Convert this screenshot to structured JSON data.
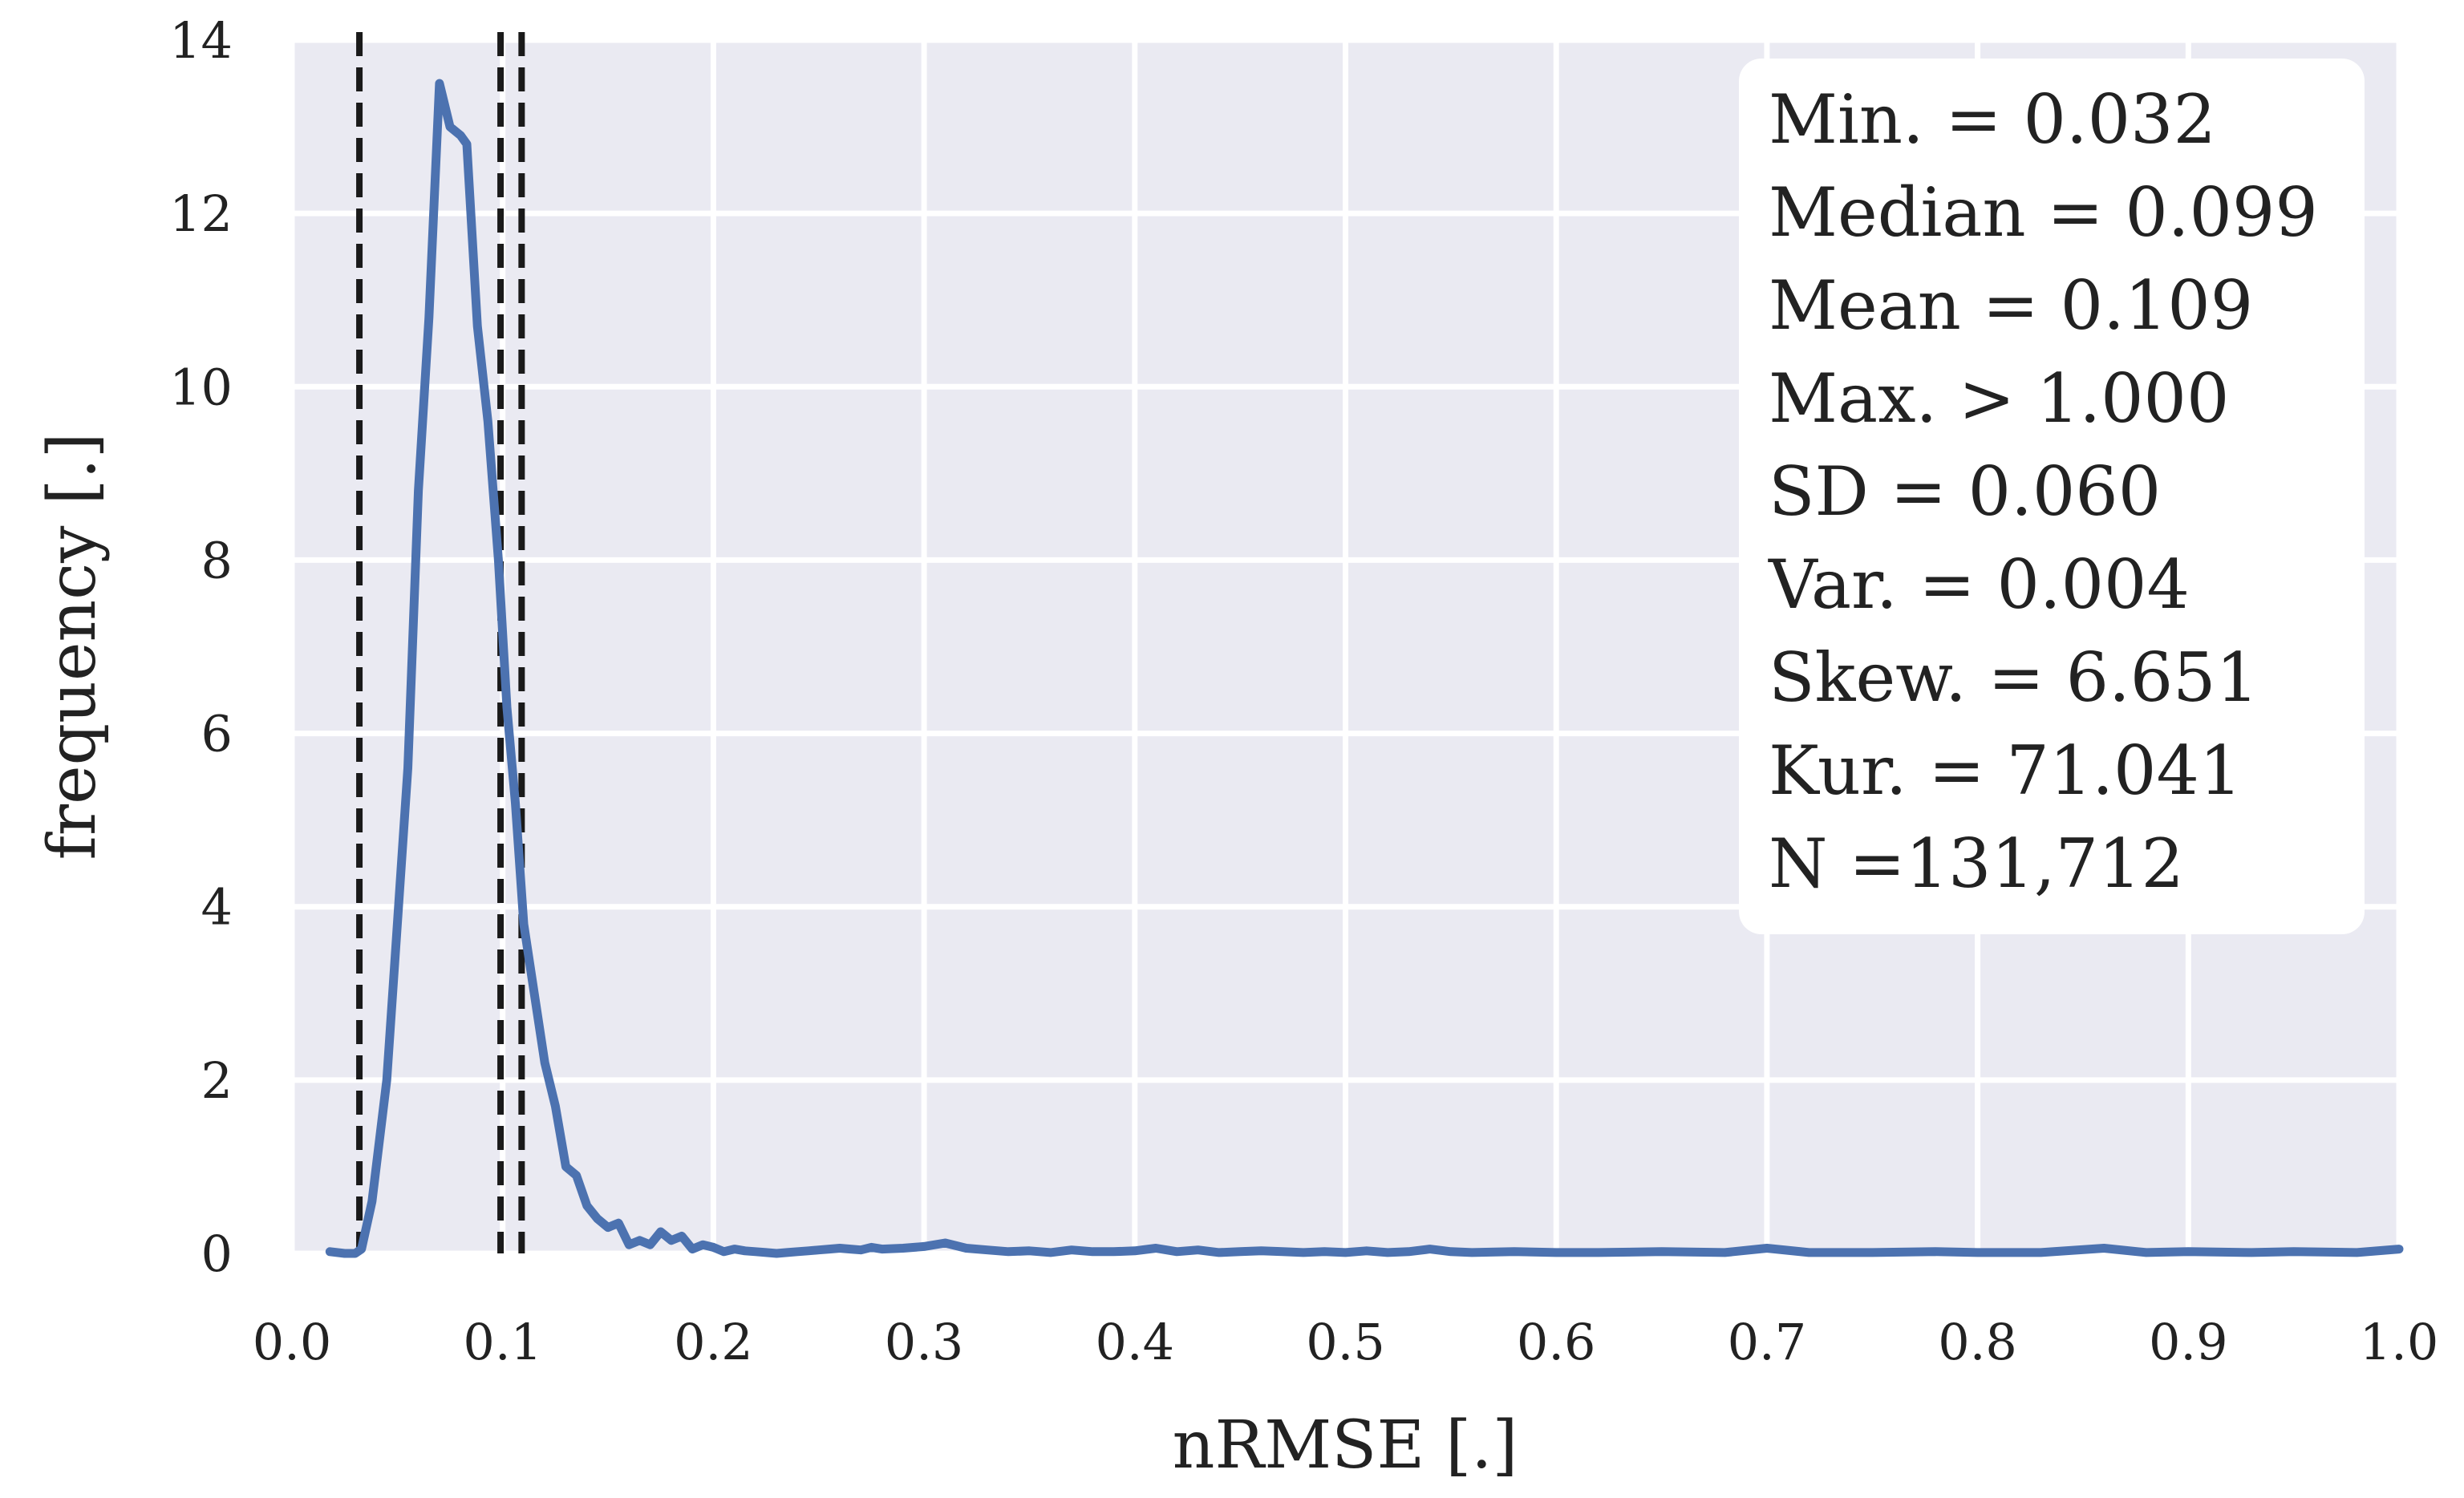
{
  "chart_data": {
    "type": "line",
    "title": "",
    "xlabel": "nRMSE [.]",
    "ylabel": "frequency [.]",
    "xlim": [
      0.0,
      1.0
    ],
    "ylim": [
      0,
      14
    ],
    "xticks": [
      "0.0",
      "0.1",
      "0.2",
      "0.3",
      "0.4",
      "0.5",
      "0.6",
      "0.7",
      "0.8",
      "0.9",
      "1.0"
    ],
    "yticks": [
      "0",
      "2",
      "4",
      "6",
      "8",
      "10",
      "12",
      "14"
    ],
    "grid": true,
    "colors": {
      "background": "#eaeaf2",
      "grid": "#ffffff",
      "line": "#4c72b0",
      "vlines": "#1a1a1a"
    },
    "series": [
      {
        "x": [
          0.018,
          0.025,
          0.03,
          0.033,
          0.038,
          0.045,
          0.05,
          0.055,
          0.06,
          0.065,
          0.07,
          0.075,
          0.08,
          0.083,
          0.088,
          0.093,
          0.098,
          0.102,
          0.106,
          0.11,
          0.115,
          0.12,
          0.125,
          0.13,
          0.135,
          0.14,
          0.145,
          0.15,
          0.155,
          0.16,
          0.165,
          0.17,
          0.175,
          0.18,
          0.185,
          0.19,
          0.195,
          0.2,
          0.205,
          0.21,
          0.215,
          0.22,
          0.225,
          0.23,
          0.235,
          0.24,
          0.245,
          0.25,
          0.255,
          0.26,
          0.265,
          0.27,
          0.275,
          0.28,
          0.29,
          0.3,
          0.31,
          0.32,
          0.33,
          0.34,
          0.35,
          0.36,
          0.37,
          0.38,
          0.39,
          0.4,
          0.41,
          0.42,
          0.43,
          0.44,
          0.45,
          0.46,
          0.47,
          0.48,
          0.49,
          0.5,
          0.51,
          0.52,
          0.53,
          0.54,
          0.55,
          0.56,
          0.58,
          0.6,
          0.62,
          0.65,
          0.68,
          0.7,
          0.72,
          0.75,
          0.78,
          0.8,
          0.83,
          0.86,
          0.88,
          0.9,
          0.93,
          0.95,
          0.98,
          1.0
        ],
        "y": [
          0.02,
          0.0,
          0.0,
          0.05,
          0.6,
          2.0,
          3.8,
          5.6,
          8.8,
          10.8,
          13.5,
          13.0,
          12.9,
          12.8,
          10.7,
          9.6,
          8.0,
          6.3,
          5.2,
          3.8,
          3.0,
          2.2,
          1.7,
          1.0,
          0.9,
          0.55,
          0.4,
          0.3,
          0.35,
          0.1,
          0.15,
          0.1,
          0.25,
          0.15,
          0.2,
          0.05,
          0.1,
          0.07,
          0.02,
          0.05,
          0.03,
          0.02,
          0.01,
          0.0,
          0.01,
          0.02,
          0.03,
          0.04,
          0.05,
          0.06,
          0.05,
          0.04,
          0.07,
          0.05,
          0.06,
          0.08,
          0.12,
          0.06,
          0.04,
          0.02,
          0.03,
          0.01,
          0.04,
          0.02,
          0.02,
          0.03,
          0.06,
          0.02,
          0.04,
          0.01,
          0.02,
          0.03,
          0.02,
          0.01,
          0.02,
          0.01,
          0.03,
          0.01,
          0.02,
          0.05,
          0.02,
          0.01,
          0.02,
          0.01,
          0.01,
          0.02,
          0.01,
          0.06,
          0.01,
          0.01,
          0.02,
          0.01,
          0.01,
          0.06,
          0.01,
          0.02,
          0.01,
          0.02,
          0.01,
          0.05
        ]
      }
    ],
    "vlines": [
      {
        "x": 0.032
      },
      {
        "x": 0.099
      },
      {
        "x": 0.109
      }
    ],
    "stats_box": {
      "placement": "top-right",
      "lines": [
        "Min. = 0.032",
        "Median = 0.099",
        "Mean = 0.109",
        "Max. > 1.000",
        "SD = 0.060",
        "Var. = 0.004",
        "Skew. = 6.651",
        "Kur. = 71.041",
        "N =131,712"
      ]
    }
  }
}
